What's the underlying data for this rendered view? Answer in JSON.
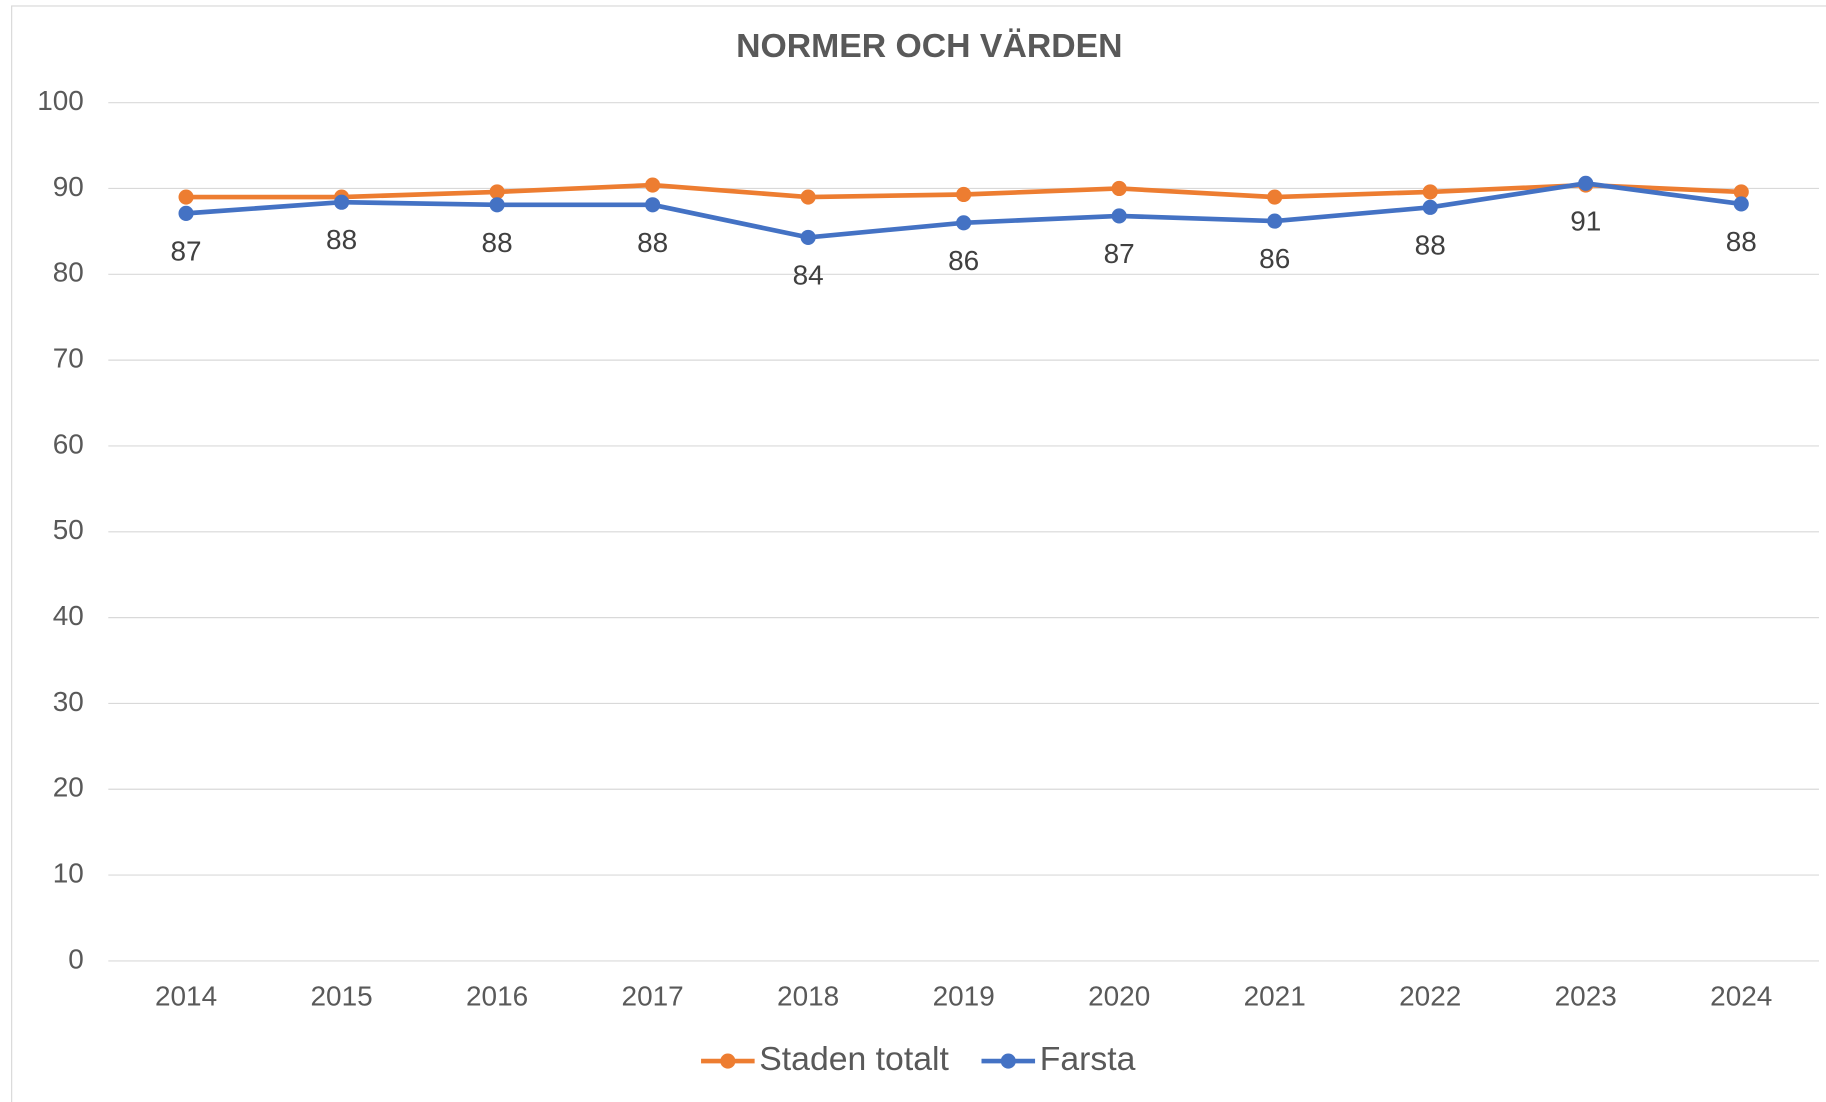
{
  "chart_data": {
    "type": "line",
    "title": "NORMER OCH VÄRDEN",
    "categories": [
      "2014",
      "2015",
      "2016",
      "2017",
      "2018",
      "2019",
      "2020",
      "2021",
      "2022",
      "2023",
      "2024"
    ],
    "series": [
      {
        "name": "Staden totalt",
        "color": "#ed7d31",
        "values": [
          89.0,
          89.0,
          89.6,
          90.4,
          89.0,
          89.3,
          90.0,
          89.0,
          89.6,
          90.4,
          89.6
        ]
      },
      {
        "name": "Farsta",
        "color": "#4472c4",
        "values": [
          87.1,
          88.4,
          88.1,
          88.1,
          84.3,
          86.0,
          86.8,
          86.2,
          87.8,
          90.6,
          88.2
        ],
        "value_labels": [
          "87",
          "88",
          "88",
          "88",
          "84",
          "86",
          "87",
          "86",
          "88",
          "91",
          "88"
        ]
      }
    ],
    "ylim": [
      0,
      100
    ],
    "yticks": [
      0,
      10,
      20,
      30,
      40,
      50,
      60,
      70,
      80,
      90,
      100
    ],
    "grid": true,
    "legend": "bottom"
  }
}
